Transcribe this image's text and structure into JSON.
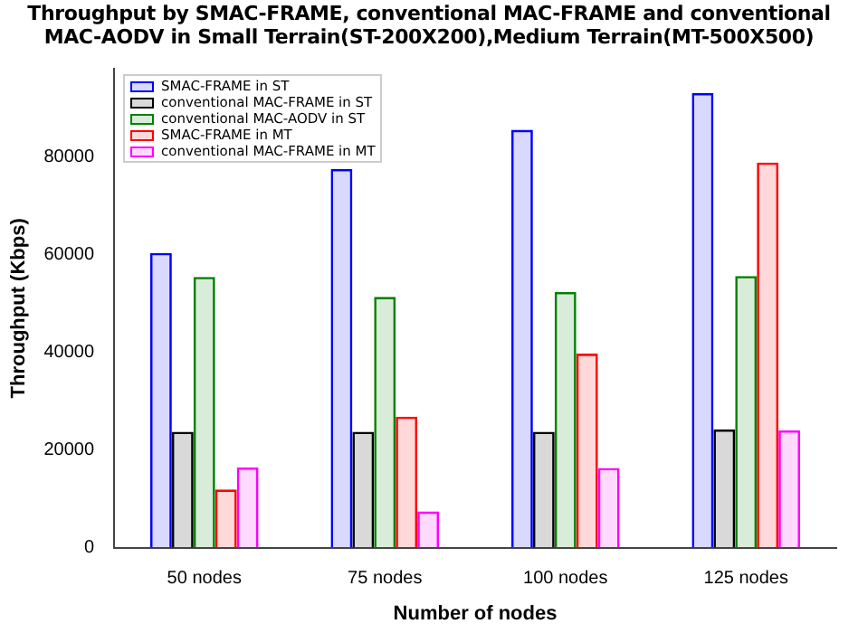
{
  "chart_data": {
    "type": "bar",
    "title": "Throughput by SMAC-FRAME, conventional MAC-FRAME and conventional MAC-AODV in Small Terrain(ST-200X200),Medium Terrain(MT-500X500)",
    "xlabel": "Number of nodes",
    "ylabel": "Throughput (Kbps)",
    "categories": [
      "50 nodes",
      "75 nodes",
      "100 nodes",
      "125 nodes"
    ],
    "series": [
      {
        "name": "SMAC-FRAME in ST",
        "color": "#0000ff",
        "values": [
          60300,
          77500,
          85500,
          93000
        ]
      },
      {
        "name": "conventional MAC-FRAME in ST",
        "color": "#000000",
        "values": [
          23700,
          23700,
          23700,
          24200
        ]
      },
      {
        "name": "conventional MAC-AODV in ST",
        "color": "#008000",
        "values": [
          55400,
          51300,
          52300,
          55600
        ]
      },
      {
        "name": "SMAC-FRAME in MT",
        "color": "#ff0000",
        "values": [
          11900,
          26800,
          39700,
          78800
        ]
      },
      {
        "name": "conventional MAC-FRAME in MT",
        "color": "#ff00ff",
        "values": [
          16400,
          7400,
          16300,
          24000
        ]
      }
    ],
    "ylim": [
      0,
      98000
    ],
    "yticks": [
      0,
      20000,
      40000,
      60000,
      80000
    ],
    "grid": false,
    "legend": "top left"
  }
}
